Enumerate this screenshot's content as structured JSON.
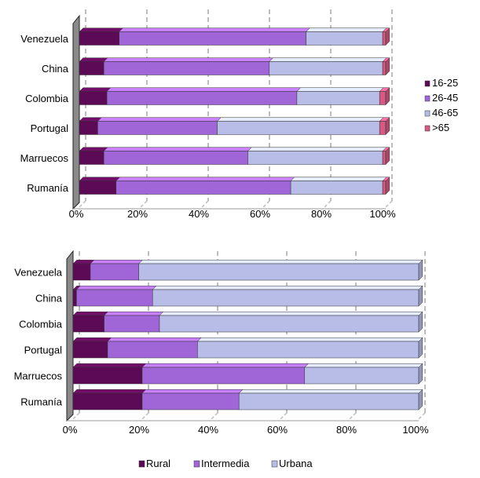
{
  "chart_data": [
    {
      "type": "bar",
      "orientation": "horizontal",
      "stacked": "percent",
      "categories": [
        "Venezuela",
        "China",
        "Colombia",
        "Portugal",
        "Marruecos",
        "Rumanía"
      ],
      "series": [
        {
          "name": "16-25",
          "color": "#5c0a55",
          "values": [
            13,
            8,
            9,
            6,
            8,
            12
          ]
        },
        {
          "name": "26-45",
          "color": "#a066d8",
          "values": [
            61,
            54,
            62,
            39,
            47,
            57
          ]
        },
        {
          "name": "46-65",
          "color": "#b8bde8",
          "values": [
            25,
            37,
            27,
            53,
            44,
            30
          ]
        },
        {
          "name": ">65",
          "color": "#d65a82",
          "values": [
            1,
            1,
            2,
            2,
            1,
            1
          ]
        }
      ],
      "xticks": [
        "0%",
        "20%",
        "40%",
        "60%",
        "80%",
        "100%"
      ],
      "xlim": [
        0,
        100
      ],
      "grid": "vertical dashed",
      "legend_position": "right"
    },
    {
      "type": "bar",
      "orientation": "horizontal",
      "stacked": "percent",
      "categories": [
        "Venezuela",
        "China",
        "Colombia",
        "Portugal",
        "Marruecos",
        "Rumanía"
      ],
      "series": [
        {
          "name": "Rural",
          "color": "#5c0a55",
          "values": [
            5,
            1,
            9,
            10,
            20,
            20
          ]
        },
        {
          "name": "Intermedia",
          "color": "#a066d8",
          "values": [
            14,
            22,
            16,
            26,
            47,
            28
          ]
        },
        {
          "name": "Urbana",
          "color": "#b8bde8",
          "values": [
            81,
            77,
            75,
            64,
            33,
            52
          ]
        }
      ],
      "xticks": [
        "0%",
        "20%",
        "40%",
        "60%",
        "80%",
        "100%"
      ],
      "xlim": [
        0,
        100
      ],
      "grid": "vertical dashed",
      "legend_position": "bottom"
    }
  ]
}
